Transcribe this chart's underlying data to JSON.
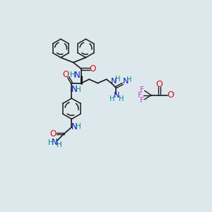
{
  "bg_color": "#dde8ec",
  "atom_colors": {
    "C": "#1a1a1a",
    "N": "#1414cc",
    "O": "#cc1414",
    "H": "#008888",
    "F": "#cc44bb",
    "neg": "#cc44bb"
  },
  "bond_color": "#1a1a1a",
  "figsize": [
    3.0,
    3.0
  ],
  "dpi": 100
}
